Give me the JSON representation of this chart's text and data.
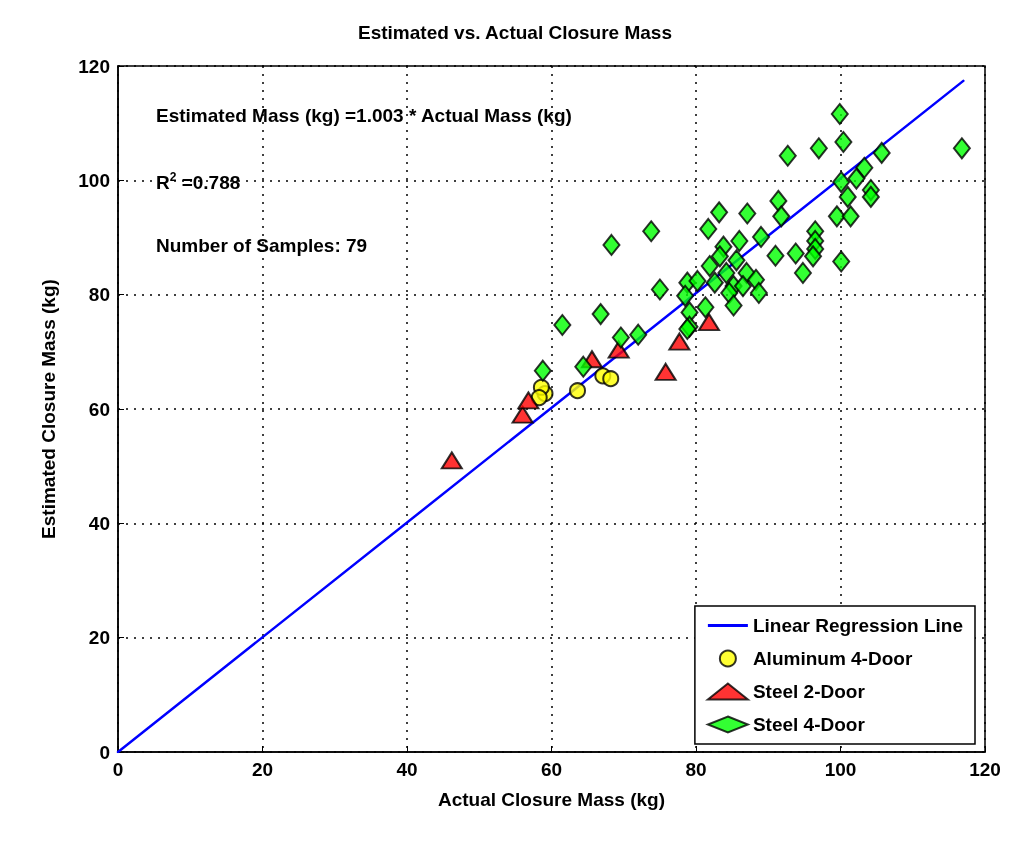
{
  "chart_data": {
    "type": "scatter",
    "title": "Estimated vs. Actual Closure Mass",
    "xlabel": "Actual Closure Mass (kg)",
    "ylabel": "Estimated Closure Mass (kg)",
    "annotations": [
      "Estimated Mass (kg) =1.003 * Actual Mass (kg)",
      "R$^{2}$ =0.788",
      "Number of Samples: 79"
    ],
    "xlim": [
      0,
      120
    ],
    "ylim": [
      0,
      120
    ],
    "xticks": [
      0,
      20,
      40,
      60,
      80,
      100,
      120
    ],
    "yticks": [
      0,
      20,
      40,
      60,
      80,
      100,
      120
    ],
    "grid": true,
    "legend": "bottom right",
    "series": [
      {
        "name": "Linear Regression Line",
        "type": "line",
        "color": "#0000ff",
        "marker": "none",
        "line_style": "solid",
        "x": [
          0,
          117
        ],
        "values": [
          0,
          117.4
        ]
      },
      {
        "name": "Aluminum 4-Door",
        "color": "#ffff00",
        "marker": "circle",
        "x": [
          59.1,
          58.6,
          63.6,
          67.1,
          68.2,
          58.3
        ],
        "values": [
          62.7,
          63.8,
          63.2,
          65.8,
          65.3,
          62.0
        ]
      },
      {
        "name": "Steel 2-Door",
        "color": "#ff0000",
        "marker": "triangle",
        "x": [
          46.2,
          56.0,
          56.8,
          65.6,
          69.3,
          75.8,
          77.7,
          81.8
        ],
        "values": [
          51.0,
          59.0,
          61.5,
          68.7,
          70.4,
          66.5,
          71.8,
          75.2
        ]
      },
      {
        "name": "Steel 4-Door",
        "color": "#00ff00",
        "marker": "diamond",
        "x": [
          99.9,
          100.4,
          97.0,
          92.7,
          105.7,
          116.8,
          103.3,
          102.2,
          100.1,
          104.2,
          104.2,
          101.0,
          91.4,
          91.8,
          83.2,
          87.1,
          99.5,
          101.4,
          81.7,
          73.8,
          89.0,
          86.0,
          96.5,
          96.5,
          96.5,
          91.0,
          93.8,
          96.2,
          94.8,
          100.1,
          75.0,
          78.8,
          80.2,
          83.8,
          83.3,
          81.9,
          85.6,
          87.0,
          84.2,
          88.3,
          88.7,
          85.2,
          84.6,
          86.5,
          78.5,
          79.1,
          81.3,
          85.2,
          79.1,
          82.6,
          61.5,
          66.8,
          69.6,
          72.0,
          64.4,
          58.8,
          78.8,
          68.3
        ],
        "values": [
          111.6,
          106.7,
          105.6,
          104.3,
          104.8,
          105.6,
          102.2,
          100.3,
          99.7,
          98.3,
          97.1,
          97.1,
          96.4,
          93.7,
          94.4,
          94.2,
          93.7,
          93.7,
          91.5,
          91.1,
          90.1,
          89.4,
          91.1,
          89.4,
          88.0,
          86.8,
          87.2,
          86.7,
          83.8,
          85.8,
          80.9,
          82.1,
          82.4,
          88.4,
          86.7,
          85.0,
          86.0,
          83.8,
          83.8,
          82.6,
          80.3,
          81.5,
          80.3,
          81.5,
          79.8,
          76.9,
          77.8,
          78.1,
          74.4,
          82.1,
          74.7,
          76.6,
          72.5,
          73.0,
          67.4,
          66.7,
          74.0,
          88.7
        ]
      }
    ]
  }
}
